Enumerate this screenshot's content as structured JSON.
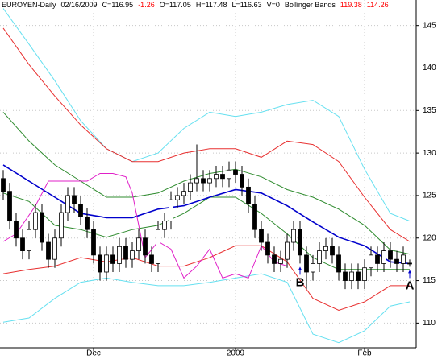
{
  "chart_data": {
    "type": "candlestick",
    "header": [
      "EUROYEN-Daily",
      "02/16/2009",
      "C=116.95",
      "-1.26",
      "O=117.05",
      "H=117.48",
      "L=116.63",
      "V=0",
      "Bollinger Bands",
      "119.38",
      "114.26"
    ],
    "header_colors": [
      "#000000",
      "#000000",
      "#000000",
      "#ff0000",
      "#000000",
      "#000000",
      "#000000",
      "#000000",
      "#000000",
      "#ff0000",
      "#ff0000"
    ],
    "categories": [
      null,
      null,
      null,
      null,
      null,
      null,
      null,
      null,
      null,
      null,
      null,
      null,
      null,
      null,
      "Dec",
      null,
      null,
      null,
      null,
      null,
      null,
      null,
      null,
      null,
      null,
      null,
      null,
      null,
      null,
      null,
      null,
      null,
      null,
      null,
      null,
      null,
      "2009",
      null,
      null,
      null,
      null,
      null,
      null,
      null,
      null,
      null,
      null,
      null,
      null,
      null,
      null,
      null,
      null,
      null,
      null,
      null,
      "Feb",
      null,
      null,
      null,
      null,
      null,
      null,
      null
    ],
    "open": [
      127,
      125.5,
      122,
      120,
      118.5,
      121,
      123,
      119.5,
      117.5,
      120,
      123,
      125,
      124,
      122.5,
      121,
      118,
      116,
      118,
      117,
      119,
      117.5,
      118.5,
      120,
      118,
      117,
      121,
      122,
      124.5,
      125,
      125.5,
      126.5,
      127,
      126.5,
      127,
      127.5,
      127,
      128,
      127.5,
      126,
      124,
      121,
      119.5,
      118,
      117,
      117.5,
      119.5,
      121,
      118,
      116,
      117,
      118.5,
      119,
      118,
      116,
      115,
      116,
      115,
      116.5,
      118,
      117,
      118.5,
      117.5,
      117,
      117.05
    ],
    "high": [
      128,
      126.5,
      123,
      121,
      122,
      124,
      124,
      120.5,
      121,
      124,
      126,
      126,
      125,
      123.5,
      122,
      119,
      119,
      119,
      120,
      120,
      119.5,
      121,
      121,
      119,
      122,
      123,
      125.5,
      126,
      126.5,
      127.5,
      131,
      128,
      128,
      128.5,
      128.5,
      129,
      129,
      128.5,
      127,
      125,
      122,
      120.5,
      119,
      118.5,
      120.5,
      122,
      122,
      119,
      118,
      119.5,
      120,
      120,
      119,
      117,
      117,
      117,
      117.5,
      119,
      119,
      119.5,
      119.5,
      118.5,
      119,
      117.48
    ],
    "low": [
      124.5,
      121,
      119,
      117.5,
      117.5,
      120,
      118.5,
      116.5,
      116.5,
      119,
      122,
      123,
      121.5,
      120,
      117,
      115,
      115,
      116,
      116,
      116.5,
      116.5,
      117.5,
      117,
      116,
      116,
      120,
      121,
      123.5,
      124,
      124.5,
      125.5,
      125.5,
      125.5,
      126,
      126,
      126,
      126.5,
      125,
      123,
      120,
      118.5,
      117,
      116,
      116,
      116.5,
      118.5,
      117,
      114,
      115,
      116,
      117.5,
      117,
      115,
      114,
      114,
      114,
      114,
      115.5,
      116,
      116,
      116.5,
      116,
      116,
      116.63
    ],
    "close": [
      125.5,
      122,
      120,
      118.5,
      121,
      123,
      119.5,
      117.5,
      120,
      123,
      125,
      124,
      122.5,
      121,
      118,
      116,
      118,
      117,
      119,
      117.5,
      118.5,
      120,
      118,
      117,
      121,
      122,
      124.5,
      125,
      125.5,
      126.5,
      127,
      126.5,
      127,
      127.5,
      127,
      128,
      127.5,
      126,
      124,
      121,
      119.5,
      118,
      117,
      117.5,
      119.5,
      121,
      118,
      116,
      117,
      118.5,
      119,
      118,
      116,
      115,
      116,
      115,
      116.5,
      118,
      117,
      118.5,
      117.5,
      117,
      118,
      116.95
    ],
    "up_color": "#ffffff",
    "down_color": "#000000",
    "lines": [
      {
        "color": "#66e0f0",
        "x": [
          0,
          4,
          8,
          12,
          16,
          20,
          24,
          28,
          32,
          36,
          40,
          44,
          48,
          52,
          56,
          60,
          63
        ],
        "values": [
          147,
          142.8,
          138.5,
          133.8,
          130.5,
          129,
          130,
          132.9,
          134.8,
          134.3,
          134.8,
          135.7,
          136.2,
          134.3,
          128.1,
          122.9,
          122
        ]
      },
      {
        "color": "#66e0f0",
        "x": [
          0,
          4,
          8,
          12,
          16,
          20,
          24,
          28,
          32,
          36,
          40,
          44,
          48,
          52,
          56,
          60,
          63
        ],
        "values": [
          110.1,
          110.6,
          112.9,
          114.8,
          115.3,
          114.8,
          114.4,
          114.4,
          114.8,
          115.3,
          115.8,
          114.8,
          108.7,
          107.7,
          109.1,
          112,
          112.5
        ]
      },
      {
        "color": "#e83030",
        "x": [
          0,
          4,
          8,
          12,
          16,
          20,
          24,
          28,
          32,
          36,
          40,
          44,
          48,
          52,
          56,
          60,
          63
        ],
        "values": [
          144.7,
          140.4,
          136.7,
          133.3,
          130.5,
          129,
          129,
          130,
          130.5,
          130.5,
          129.5,
          131.4,
          131,
          129,
          124.8,
          121,
          119.6
        ]
      },
      {
        "color": "#e83030",
        "x": [
          0,
          4,
          8,
          12,
          16,
          20,
          24,
          28,
          32,
          36,
          40,
          44,
          48,
          52,
          56,
          60,
          63
        ],
        "values": [
          115.8,
          116.3,
          116.7,
          117.7,
          117.2,
          117.7,
          116.7,
          116.7,
          117.7,
          119.1,
          119.1,
          117.2,
          112.9,
          111.5,
          112.5,
          114.4,
          114.4
        ]
      },
      {
        "color": "#2e8b2e",
        "x": [
          0,
          4,
          8,
          12,
          16,
          20,
          24,
          28,
          32,
          36,
          40,
          44,
          48,
          52,
          56,
          60,
          63
        ],
        "values": [
          134.8,
          131.4,
          128.6,
          126.7,
          124.8,
          124.8,
          125.3,
          126.7,
          127.6,
          128.1,
          127.2,
          125.7,
          124.8,
          123.4,
          121.5,
          118.6,
          118.1
        ]
      },
      {
        "color": "#2e8b2e",
        "x": [
          0,
          4,
          8,
          12,
          16,
          20,
          24,
          28,
          32,
          36,
          40,
          44,
          48,
          52,
          56,
          60,
          63
        ],
        "values": [
          125.3,
          124.3,
          121.5,
          121,
          120.1,
          121,
          121.5,
          122.9,
          124.8,
          124.8,
          122.9,
          120.5,
          117.7,
          116.3,
          116.3,
          116.3,
          116.3
        ]
      },
      {
        "color": "#0000cc",
        "x": [
          0,
          4,
          8,
          12,
          16,
          20,
          24,
          28,
          32,
          36,
          40,
          44,
          48,
          52,
          56,
          60,
          63
        ],
        "values": [
          128.6,
          126.7,
          124.8,
          122.9,
          122.4,
          122.4,
          123.4,
          123.8,
          124.8,
          125.7,
          125.3,
          123.8,
          121.9,
          120.1,
          119.1,
          117.2,
          117
        ]
      },
      {
        "color": "#e020c8",
        "x": [
          0,
          2,
          5,
          7,
          9,
          11,
          13,
          15,
          17,
          19,
          20,
          21,
          22,
          24,
          26,
          28,
          30,
          32,
          34,
          36,
          38,
          40,
          42,
          44
        ],
        "values": [
          119.6,
          120.5,
          123.8,
          126.7,
          126.7,
          126.7,
          126.7,
          127.6,
          127.6,
          127.2,
          125.3,
          121.5,
          117.7,
          119.6,
          118.7,
          115.3,
          116.7,
          118.7,
          115.3,
          115.8,
          115.3,
          119.1,
          117.2,
          116.7
        ]
      }
    ],
    "annotations": [
      {
        "text": "B",
        "x": 46
      },
      {
        "text": "A",
        "x": 63
      }
    ],
    "annotation_color": "#0000cc",
    "ylim": [
      107.1,
      148.0
    ],
    "yticks": [
      110,
      115,
      120,
      125,
      130,
      135,
      140,
      145
    ],
    "grid": true
  }
}
